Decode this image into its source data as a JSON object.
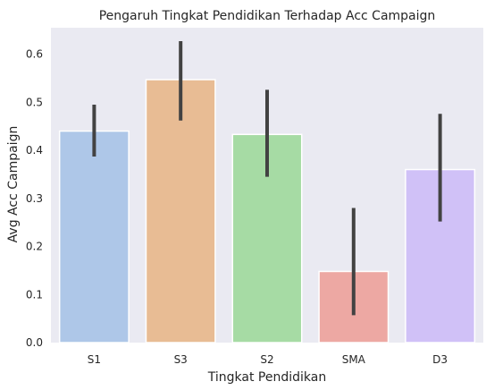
{
  "chart_data": {
    "type": "bar",
    "title": "Pengaruh Tingkat Pendidikan Terhadap Acc Campaign",
    "xlabel": "Tingkat Pendidikan",
    "ylabel": "Avg Acc Campaign",
    "categories": [
      "S1",
      "S3",
      "S2",
      "SMA",
      "D3"
    ],
    "values": [
      0.44,
      0.547,
      0.433,
      0.148,
      0.36
    ],
    "error_low": [
      0.387,
      0.462,
      0.345,
      0.057,
      0.252
    ],
    "error_high": [
      0.495,
      0.627,
      0.526,
      0.28,
      0.476
    ],
    "colors": [
      "#aec7e8",
      "#e8bc94",
      "#a6dba4",
      "#eda8a3",
      "#d0c1f7"
    ],
    "error_color": "#424242",
    "background": "#eaeaf2",
    "ylim": [
      0,
      0.655
    ],
    "yticks": [
      0.0,
      0.1,
      0.2,
      0.3,
      0.4,
      0.5,
      0.6
    ],
    "ytick_labels": [
      "0.0",
      "0.1",
      "0.2",
      "0.3",
      "0.4",
      "0.5",
      "0.6"
    ],
    "grid": false,
    "legend": "none"
  }
}
